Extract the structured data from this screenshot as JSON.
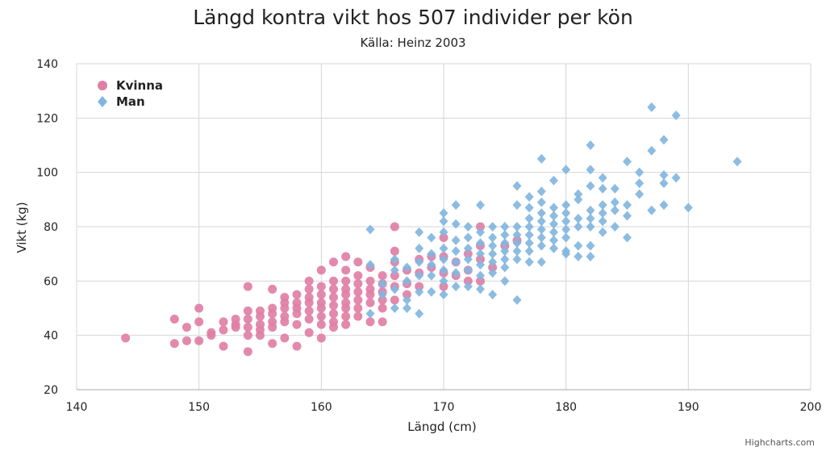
{
  "chart_data": {
    "type": "scatter",
    "title": "Längd kontra vikt hos 507 individer per kön",
    "subtitle": "Källa: Heinz 2003",
    "xlabel": "Längd (cm)",
    "ylabel": "Vikt (kg)",
    "xlim": [
      140,
      200
    ],
    "ylim": [
      20,
      140
    ],
    "x_ticks": [
      "140",
      "150",
      "160",
      "170",
      "180",
      "190",
      "200"
    ],
    "y_ticks": [
      "20",
      "40",
      "60",
      "80",
      "100",
      "120",
      "140"
    ],
    "grid": true,
    "legend_position": "top-left",
    "credits": "Highcharts.com",
    "series": [
      {
        "name": "Kvinna",
        "marker": "circle",
        "color": "#e07fa5",
        "points": [
          [
            144,
            39
          ],
          [
            148,
            37
          ],
          [
            148,
            46
          ],
          [
            149,
            43
          ],
          [
            149,
            38
          ],
          [
            150,
            50
          ],
          [
            150,
            45
          ],
          [
            150,
            38
          ],
          [
            151,
            40
          ],
          [
            151,
            41
          ],
          [
            152,
            45
          ],
          [
            152,
            42
          ],
          [
            152,
            36
          ],
          [
            153,
            46
          ],
          [
            153,
            43
          ],
          [
            153,
            44
          ],
          [
            154,
            58
          ],
          [
            154,
            49
          ],
          [
            154,
            46
          ],
          [
            154,
            43
          ],
          [
            154,
            40
          ],
          [
            154,
            34
          ],
          [
            155,
            49
          ],
          [
            155,
            47
          ],
          [
            155,
            44
          ],
          [
            155,
            42
          ],
          [
            155,
            40
          ],
          [
            156,
            57
          ],
          [
            156,
            50
          ],
          [
            156,
            48
          ],
          [
            156,
            45
          ],
          [
            156,
            43
          ],
          [
            156,
            37
          ],
          [
            157,
            52
          ],
          [
            157,
            54
          ],
          [
            157,
            50
          ],
          [
            157,
            47
          ],
          [
            157,
            45
          ],
          [
            157,
            39
          ],
          [
            158,
            55
          ],
          [
            158,
            52
          ],
          [
            158,
            50
          ],
          [
            158,
            48
          ],
          [
            158,
            44
          ],
          [
            158,
            36
          ],
          [
            159,
            60
          ],
          [
            159,
            57
          ],
          [
            159,
            54
          ],
          [
            159,
            52
          ],
          [
            159,
            49
          ],
          [
            159,
            46
          ],
          [
            159,
            41
          ],
          [
            160,
            64
          ],
          [
            160,
            58
          ],
          [
            160,
            55
          ],
          [
            160,
            52
          ],
          [
            160,
            50
          ],
          [
            160,
            47
          ],
          [
            160,
            44
          ],
          [
            160,
            39
          ],
          [
            161,
            67
          ],
          [
            161,
            60
          ],
          [
            161,
            57
          ],
          [
            161,
            54
          ],
          [
            161,
            51
          ],
          [
            161,
            48
          ],
          [
            161,
            45
          ],
          [
            161,
            43
          ],
          [
            162,
            69
          ],
          [
            162,
            64
          ],
          [
            162,
            60
          ],
          [
            162,
            57
          ],
          [
            162,
            55
          ],
          [
            162,
            52
          ],
          [
            162,
            50
          ],
          [
            162,
            47
          ],
          [
            162,
            44
          ],
          [
            163,
            67
          ],
          [
            163,
            62
          ],
          [
            163,
            59
          ],
          [
            163,
            56
          ],
          [
            163,
            53
          ],
          [
            163,
            50
          ],
          [
            163,
            47
          ],
          [
            164,
            65
          ],
          [
            164,
            60
          ],
          [
            164,
            57
          ],
          [
            164,
            55
          ],
          [
            164,
            52
          ],
          [
            164,
            45
          ],
          [
            165,
            62
          ],
          [
            165,
            59
          ],
          [
            165,
            56
          ],
          [
            165,
            53
          ],
          [
            165,
            50
          ],
          [
            165,
            45
          ],
          [
            166,
            80
          ],
          [
            166,
            71
          ],
          [
            166,
            67
          ],
          [
            166,
            62
          ],
          [
            166,
            58
          ],
          [
            166,
            53
          ],
          [
            167,
            64
          ],
          [
            167,
            59
          ],
          [
            167,
            55
          ],
          [
            168,
            68
          ],
          [
            168,
            63
          ],
          [
            168,
            58
          ],
          [
            169,
            69
          ],
          [
            169,
            65
          ],
          [
            170,
            76
          ],
          [
            170,
            69
          ],
          [
            170,
            63
          ],
          [
            170,
            58
          ],
          [
            171,
            67
          ],
          [
            171,
            62
          ],
          [
            172,
            70
          ],
          [
            172,
            64
          ],
          [
            172,
            60
          ],
          [
            173,
            80
          ],
          [
            173,
            73
          ],
          [
            173,
            68
          ],
          [
            173,
            60
          ],
          [
            174,
            65
          ],
          [
            175,
            73
          ],
          [
            176,
            75
          ]
        ]
      },
      {
        "name": "Man",
        "marker": "diamond",
        "color": "#82b6e0",
        "points": [
          [
            164,
            79
          ],
          [
            164,
            66
          ],
          [
            164,
            48
          ],
          [
            165,
            59
          ],
          [
            165,
            55
          ],
          [
            166,
            68
          ],
          [
            166,
            64
          ],
          [
            166,
            57
          ],
          [
            166,
            50
          ],
          [
            167,
            65
          ],
          [
            167,
            60
          ],
          [
            167,
            53
          ],
          [
            167,
            50
          ],
          [
            168,
            78
          ],
          [
            168,
            72
          ],
          [
            168,
            67
          ],
          [
            168,
            62
          ],
          [
            168,
            56
          ],
          [
            168,
            48
          ],
          [
            169,
            76
          ],
          [
            169,
            70
          ],
          [
            169,
            66
          ],
          [
            169,
            62
          ],
          [
            169,
            56
          ],
          [
            170,
            85
          ],
          [
            170,
            82
          ],
          [
            170,
            78
          ],
          [
            170,
            72
          ],
          [
            170,
            68
          ],
          [
            170,
            64
          ],
          [
            170,
            60
          ],
          [
            170,
            55
          ],
          [
            171,
            88
          ],
          [
            171,
            81
          ],
          [
            171,
            75
          ],
          [
            171,
            71
          ],
          [
            171,
            67
          ],
          [
            171,
            63
          ],
          [
            171,
            58
          ],
          [
            172,
            80
          ],
          [
            172,
            76
          ],
          [
            172,
            72
          ],
          [
            172,
            68
          ],
          [
            172,
            64
          ],
          [
            172,
            58
          ],
          [
            173,
            88
          ],
          [
            173,
            78
          ],
          [
            173,
            74
          ],
          [
            173,
            70
          ],
          [
            173,
            66
          ],
          [
            173,
            62
          ],
          [
            173,
            57
          ],
          [
            174,
            80
          ],
          [
            174,
            76
          ],
          [
            174,
            73
          ],
          [
            174,
            70
          ],
          [
            174,
            67
          ],
          [
            174,
            63
          ],
          [
            174,
            55
          ],
          [
            175,
            80
          ],
          [
            175,
            77
          ],
          [
            175,
            74
          ],
          [
            175,
            71
          ],
          [
            175,
            68
          ],
          [
            175,
            65
          ],
          [
            175,
            60
          ],
          [
            176,
            95
          ],
          [
            176,
            88
          ],
          [
            176,
            80
          ],
          [
            176,
            77
          ],
          [
            176,
            74
          ],
          [
            176,
            71
          ],
          [
            176,
            68
          ],
          [
            176,
            53
          ],
          [
            177,
            91
          ],
          [
            177,
            87
          ],
          [
            177,
            83
          ],
          [
            177,
            80
          ],
          [
            177,
            77
          ],
          [
            177,
            74
          ],
          [
            177,
            71
          ],
          [
            177,
            67
          ],
          [
            178,
            105
          ],
          [
            178,
            93
          ],
          [
            178,
            89
          ],
          [
            178,
            85
          ],
          [
            178,
            82
          ],
          [
            178,
            79
          ],
          [
            178,
            76
          ],
          [
            178,
            73
          ],
          [
            178,
            67
          ],
          [
            179,
            97
          ],
          [
            179,
            87
          ],
          [
            179,
            84
          ],
          [
            179,
            81
          ],
          [
            179,
            78
          ],
          [
            179,
            75
          ],
          [
            179,
            72
          ],
          [
            180,
            101
          ],
          [
            180,
            88
          ],
          [
            180,
            85
          ],
          [
            180,
            82
          ],
          [
            180,
            79
          ],
          [
            180,
            76
          ],
          [
            180,
            71
          ],
          [
            180,
            70
          ],
          [
            181,
            92
          ],
          [
            181,
            90
          ],
          [
            181,
            83
          ],
          [
            181,
            80
          ],
          [
            181,
            73
          ],
          [
            181,
            69
          ],
          [
            182,
            110
          ],
          [
            182,
            101
          ],
          [
            182,
            95
          ],
          [
            182,
            86
          ],
          [
            182,
            83
          ],
          [
            182,
            80
          ],
          [
            182,
            73
          ],
          [
            182,
            69
          ],
          [
            183,
            98
          ],
          [
            183,
            94
          ],
          [
            183,
            88
          ],
          [
            183,
            85
          ],
          [
            183,
            82
          ],
          [
            183,
            78
          ],
          [
            184,
            94
          ],
          [
            184,
            89
          ],
          [
            184,
            86
          ],
          [
            184,
            80
          ],
          [
            185,
            104
          ],
          [
            185,
            88
          ],
          [
            185,
            84
          ],
          [
            185,
            76
          ],
          [
            186,
            100
          ],
          [
            186,
            96
          ],
          [
            186,
            92
          ],
          [
            187,
            124
          ],
          [
            187,
            108
          ],
          [
            187,
            86
          ],
          [
            188,
            112
          ],
          [
            188,
            99
          ],
          [
            188,
            96
          ],
          [
            188,
            88
          ],
          [
            189,
            121
          ],
          [
            189,
            98
          ],
          [
            190,
            87
          ],
          [
            194,
            104
          ]
        ]
      }
    ]
  }
}
